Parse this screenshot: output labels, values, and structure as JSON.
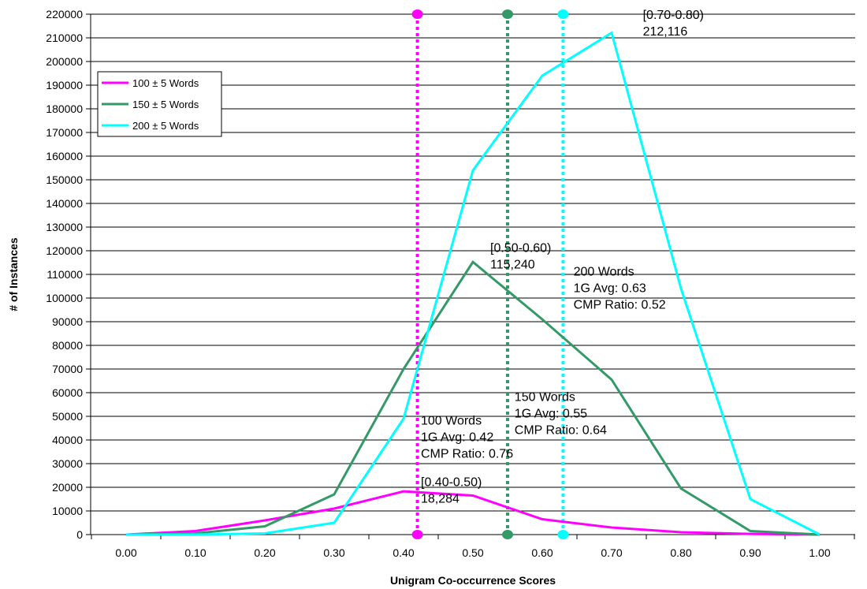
{
  "chart_data": {
    "type": "line",
    "xlabel": "Unigram Co-occurrence Scores",
    "ylabel": "# of Instances",
    "x": [
      0.0,
      0.1,
      0.2,
      0.3,
      0.4,
      0.5,
      0.6,
      0.7,
      0.8,
      0.9,
      1.0
    ],
    "x_tick_labels": [
      "0.00",
      "0.10",
      "0.20",
      "0.30",
      "0.40",
      "0.50",
      "0.60",
      "0.70",
      "0.80",
      "0.90",
      "1.00"
    ],
    "ylim": [
      0,
      220000
    ],
    "y_ticks": [
      0,
      10000,
      20000,
      30000,
      40000,
      50000,
      60000,
      70000,
      80000,
      90000,
      100000,
      110000,
      120000,
      130000,
      140000,
      150000,
      160000,
      170000,
      180000,
      190000,
      200000,
      210000,
      220000
    ],
    "grid": true,
    "legend_position": "upper-left",
    "series": [
      {
        "name": "100 ± 5 Words",
        "color": "#ff00ff",
        "values": [
          0,
          1500,
          6000,
          11000,
          18284,
          16500,
          6500,
          3000,
          1000,
          300,
          0
        ]
      },
      {
        "name": "150 ± 5 Words",
        "color": "#339966",
        "values": [
          0,
          500,
          3500,
          17000,
          70000,
          115240,
          91000,
          65500,
          19500,
          1500,
          0
        ]
      },
      {
        "name": "200 ± 5 Words",
        "color": "#00ffff",
        "values": [
          0,
          0,
          500,
          5000,
          49000,
          154000,
          194000,
          212116,
          104000,
          15000,
          0
        ]
      }
    ],
    "average_lines": [
      {
        "series": "100 ± 5 Words",
        "x": 0.42,
        "color": "#ff00ff"
      },
      {
        "series": "150 ± 5 Words",
        "x": 0.55,
        "color": "#339966"
      },
      {
        "series": "200 ± 5 Words",
        "x": 0.63,
        "color": "#00ffff"
      }
    ],
    "annotations": [
      {
        "lines": [
          "[0.70-0.80)",
          "212,116"
        ],
        "x": 0.745,
        "y": 218000
      },
      {
        "lines": [
          "[0.50-0.60)",
          "115,240"
        ],
        "x": 0.525,
        "y": 119500
      },
      {
        "lines": [
          "200 Words",
          "1G Avg: 0.63",
          "CMP Ratio: 0.52"
        ],
        "x": 0.645,
        "y": 109500
      },
      {
        "lines": [
          "150 Words",
          "1G Avg: 0.55",
          "CMP Ratio: 0.64"
        ],
        "x": 0.56,
        "y": 56500
      },
      {
        "lines": [
          "100 Words",
          "1G Avg: 0.42",
          "CMP Ratio: 0.76"
        ],
        "x": 0.425,
        "y": 46500
      },
      {
        "lines": [
          "[0.40-0.50)",
          "18,284"
        ],
        "x": 0.425,
        "y": 20500
      }
    ]
  }
}
